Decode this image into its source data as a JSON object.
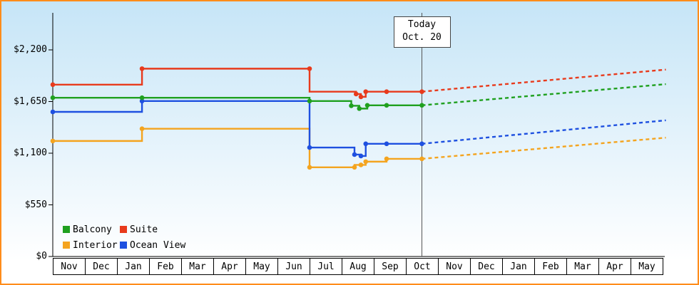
{
  "frame": {
    "border_color": "#FF8C1A",
    "bg_top": "#C6E5F7",
    "bg_bottom": "#FFFFFF",
    "axis_color": "#000000",
    "today_line_color": "#555555"
  },
  "today_marker": {
    "line1": "Today",
    "line2": "Oct. 20"
  },
  "legend": [
    {
      "label": "Balcony",
      "color": "#1FA01F"
    },
    {
      "label": "Suite",
      "color": "#E83A1C"
    },
    {
      "label": "Interior",
      "color": "#F4A41F"
    },
    {
      "label": "Ocean View",
      "color": "#1E50E0"
    }
  ],
  "chart_data": {
    "type": "step-line",
    "currency": "USD",
    "x_categories": [
      "Nov",
      "Dec",
      "Jan",
      "Feb",
      "Mar",
      "Apr",
      "May",
      "Jun",
      "Jul",
      "Aug",
      "Sep",
      "Oct",
      "Nov",
      "Dec",
      "Jan",
      "Feb",
      "Mar",
      "Apr",
      "May"
    ],
    "y_ticks": [
      {
        "label": "$0",
        "value": 0
      },
      {
        "label": "$550",
        "value": 550
      },
      {
        "label": "$1,100",
        "value": 1100
      },
      {
        "label": "$1,650",
        "value": 1650
      },
      {
        "label": "$2,200",
        "value": 2200
      }
    ],
    "ylim": [
      0,
      2600
    ],
    "today_x": 11.5,
    "series": [
      {
        "name": "Interior",
        "color": "#F4A41F",
        "history_steps": [
          [
            0,
            1230
          ],
          [
            2.78,
            1230
          ],
          [
            2.78,
            1360
          ],
          [
            8,
            1360
          ],
          [
            8,
            950
          ],
          [
            9.4,
            950
          ],
          [
            9.4,
            975
          ],
          [
            9.75,
            975
          ],
          [
            9.75,
            1010
          ],
          [
            10.4,
            1010
          ],
          [
            10.4,
            1040
          ],
          [
            11.5,
            1040
          ]
        ],
        "markers": [
          [
            0,
            1230
          ],
          [
            2.78,
            1360
          ],
          [
            8,
            950
          ],
          [
            9.4,
            950
          ],
          [
            9.6,
            975
          ],
          [
            9.75,
            1010
          ],
          [
            10.4,
            1040
          ],
          [
            11.5,
            1040
          ]
        ],
        "forecast": [
          [
            11.5,
            1040
          ],
          [
            19.1,
            1265
          ]
        ]
      },
      {
        "name": "Ocean View",
        "color": "#1E50E0",
        "history_steps": [
          [
            0,
            1540
          ],
          [
            2.78,
            1540
          ],
          [
            2.78,
            1655
          ],
          [
            8,
            1655
          ],
          [
            8,
            1160
          ],
          [
            9.4,
            1160
          ],
          [
            9.4,
            1085
          ],
          [
            9.6,
            1085
          ],
          [
            9.6,
            1070
          ],
          [
            9.75,
            1070
          ],
          [
            9.75,
            1200
          ],
          [
            11.5,
            1200
          ]
        ],
        "markers": [
          [
            0,
            1540
          ],
          [
            2.78,
            1655
          ],
          [
            8,
            1160
          ],
          [
            9.4,
            1085
          ],
          [
            9.6,
            1070
          ],
          [
            9.75,
            1200
          ],
          [
            10.4,
            1200
          ],
          [
            11.5,
            1200
          ]
        ],
        "forecast": [
          [
            11.5,
            1200
          ],
          [
            19.1,
            1450
          ]
        ]
      },
      {
        "name": "Balcony",
        "color": "#1FA01F",
        "history_steps": [
          [
            0,
            1690
          ],
          [
            8,
            1690
          ],
          [
            8,
            1655
          ],
          [
            9.3,
            1655
          ],
          [
            9.3,
            1605
          ],
          [
            9.55,
            1605
          ],
          [
            9.55,
            1575
          ],
          [
            9.8,
            1575
          ],
          [
            9.8,
            1610
          ],
          [
            11.5,
            1610
          ]
        ],
        "markers": [
          [
            0,
            1690
          ],
          [
            2.78,
            1690
          ],
          [
            8,
            1655
          ],
          [
            9.3,
            1605
          ],
          [
            9.55,
            1575
          ],
          [
            9.8,
            1610
          ],
          [
            10.4,
            1610
          ],
          [
            11.5,
            1610
          ]
        ],
        "forecast": [
          [
            11.5,
            1610
          ],
          [
            19.1,
            1835
          ]
        ]
      },
      {
        "name": "Suite",
        "color": "#E83A1C",
        "history_steps": [
          [
            0,
            1830
          ],
          [
            2.78,
            1830
          ],
          [
            2.78,
            2000
          ],
          [
            8,
            2000
          ],
          [
            8,
            1755
          ],
          [
            9.45,
            1755
          ],
          [
            9.45,
            1730
          ],
          [
            9.6,
            1730
          ],
          [
            9.6,
            1700
          ],
          [
            9.75,
            1700
          ],
          [
            9.75,
            1755
          ],
          [
            11.5,
            1755
          ]
        ],
        "markers": [
          [
            0,
            1830
          ],
          [
            2.78,
            2000
          ],
          [
            8,
            2000
          ],
          [
            9.45,
            1730
          ],
          [
            9.6,
            1700
          ],
          [
            9.75,
            1755
          ],
          [
            10.4,
            1755
          ],
          [
            11.5,
            1755
          ]
        ],
        "forecast": [
          [
            11.5,
            1755
          ],
          [
            19.1,
            1990
          ]
        ]
      }
    ]
  }
}
